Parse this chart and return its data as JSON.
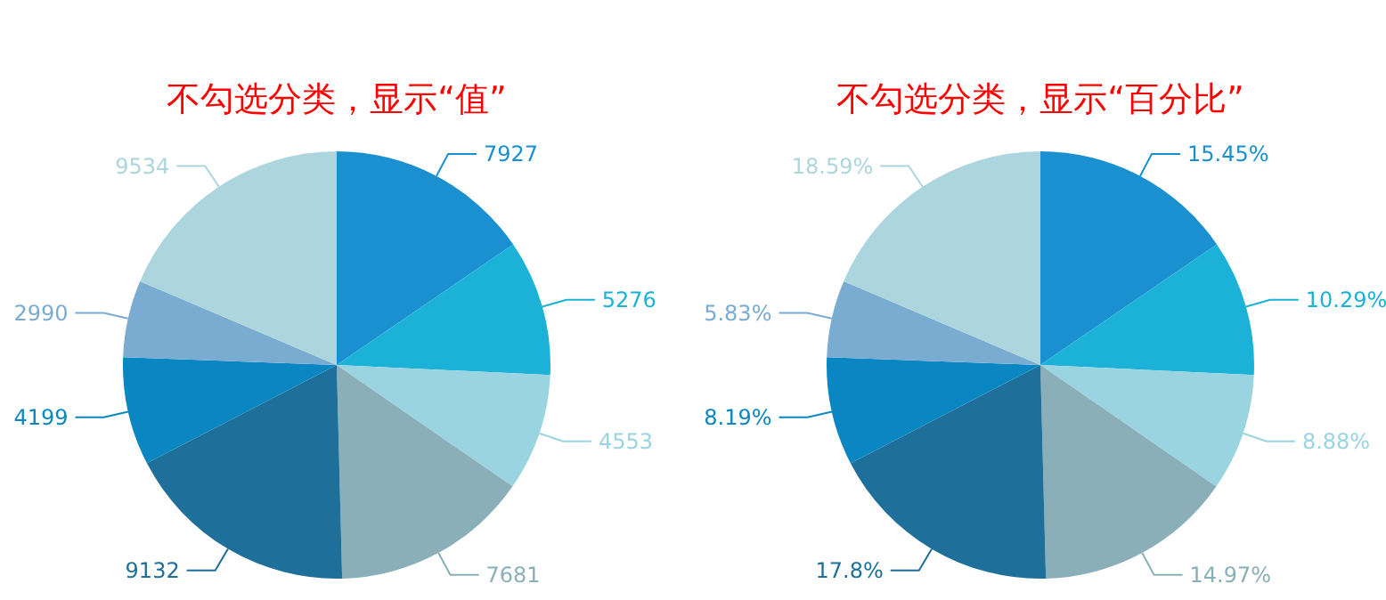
{
  "chart_data": [
    {
      "type": "pie",
      "title": "不勾选分类，显示“值”",
      "categories": [
        null,
        null,
        null,
        null,
        null,
        null,
        null,
        null
      ],
      "values": [
        7927,
        5276,
        4553,
        7681,
        9132,
        4199,
        2990,
        9534
      ],
      "colors": [
        "#1a90d0",
        "#1cb2d8",
        "#9ad4e0",
        "#8aafb9",
        "#1e6f9a",
        "#0a86c2",
        "#7aacd2",
        "#add5de"
      ],
      "data_labels": true
    },
    {
      "type": "pie",
      "title": "不勾选分类，显示“百分比”",
      "categories": [
        null,
        null,
        null,
        null,
        null,
        null,
        null,
        null
      ],
      "values": [
        15.45,
        10.29,
        8.88,
        14.97,
        17.8,
        8.19,
        5.83,
        18.59
      ],
      "colors": [
        "#1a90d0",
        "#1cb2d8",
        "#9ad4e0",
        "#8aafb9",
        "#1e6f9a",
        "#0a86c2",
        "#7aacd2",
        "#add5de"
      ],
      "value_labels": [
        "15.45%",
        "10.29%",
        "8.88%",
        "14.97%",
        "17.8%",
        "8.19%",
        "5.83%",
        "18.59%"
      ]
    }
  ]
}
